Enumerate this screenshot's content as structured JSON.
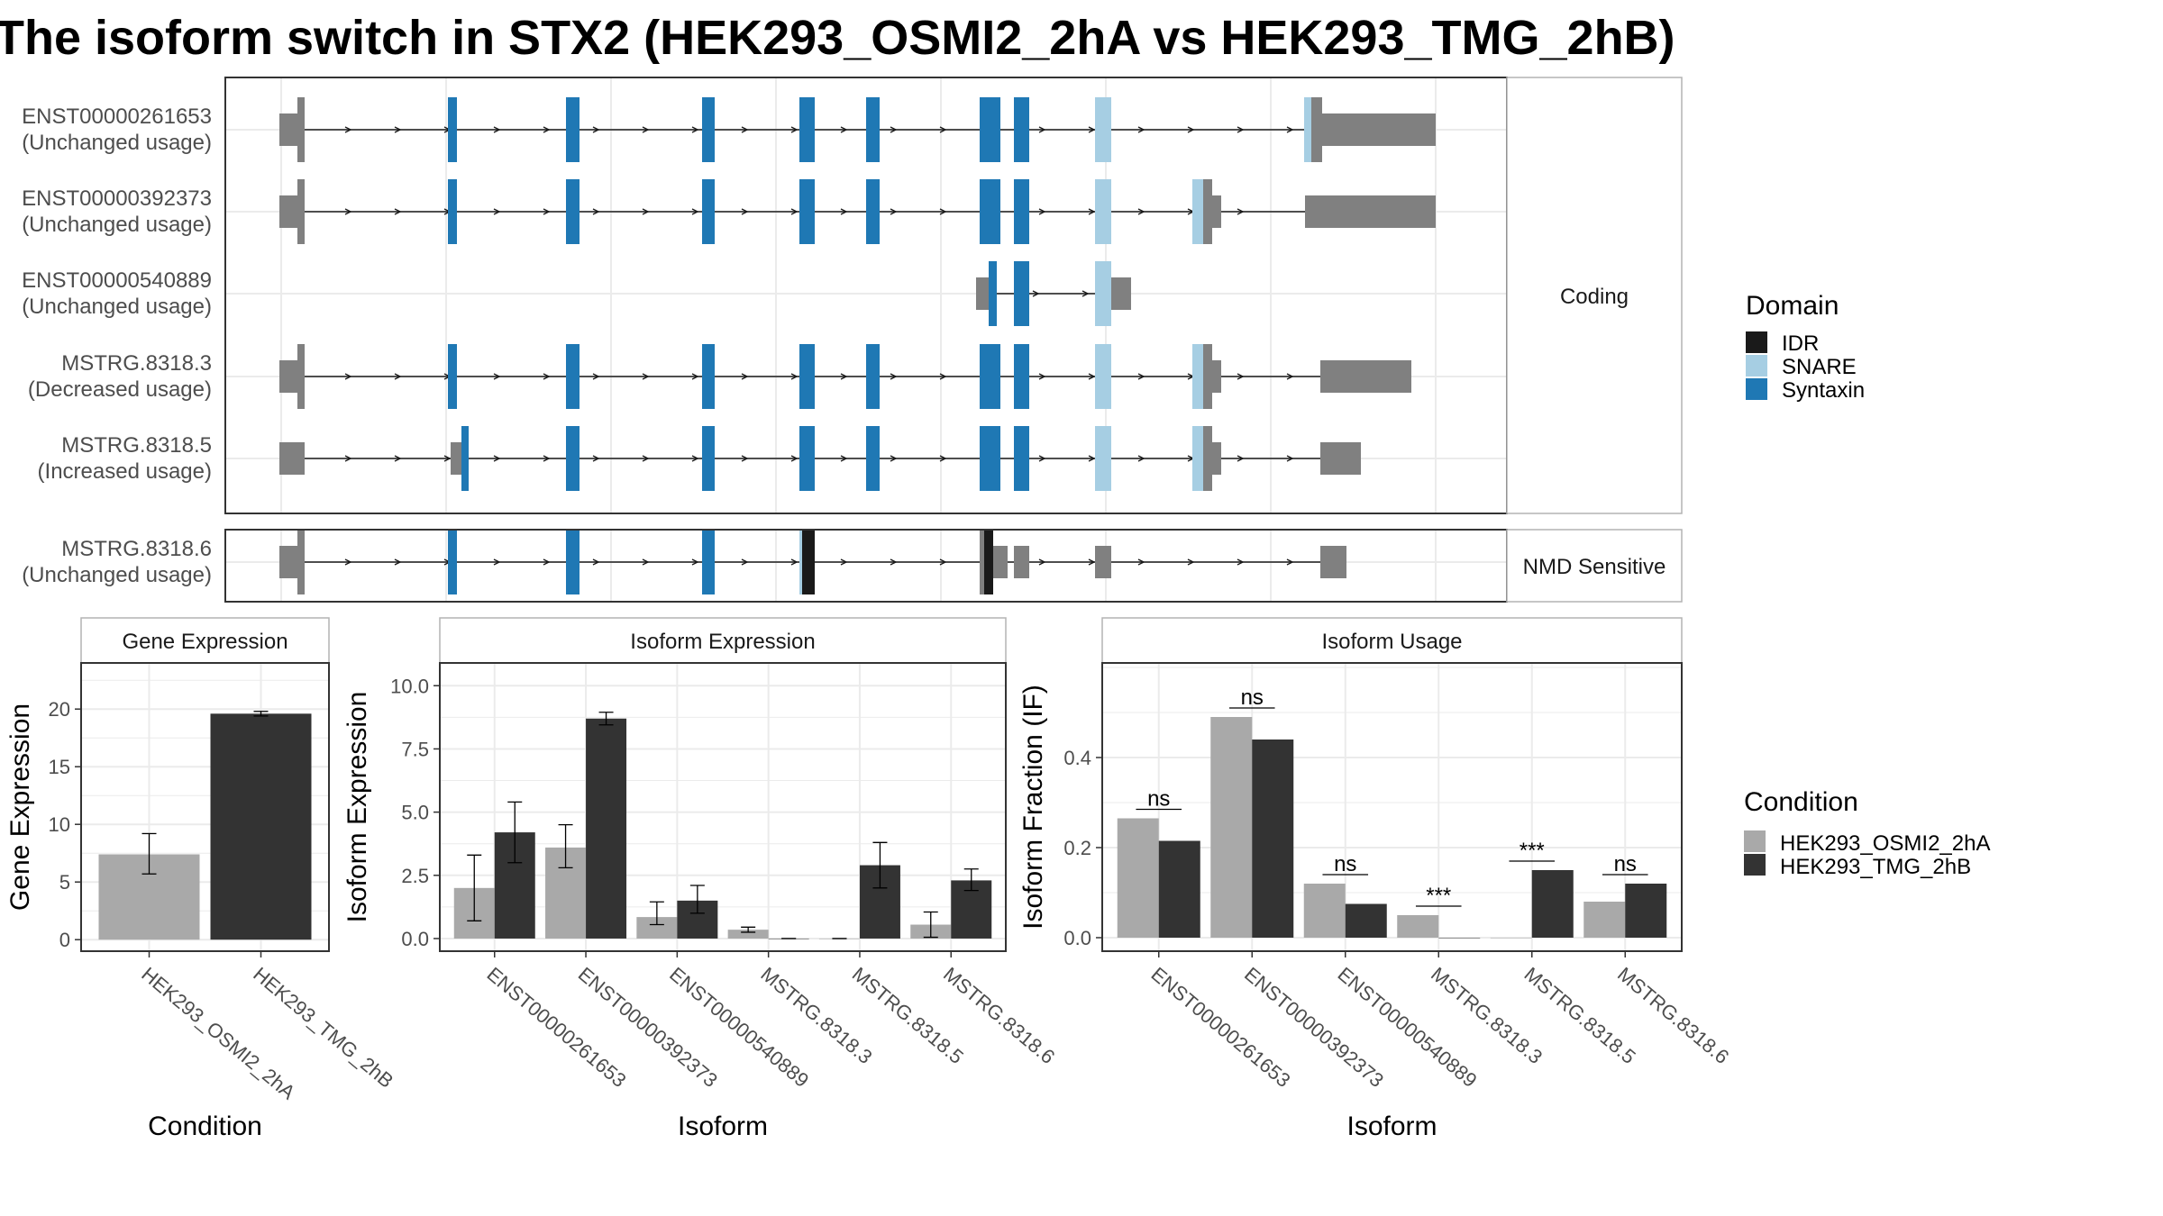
{
  "title": "The isoform switch in STX2 (HEK293_OSMI2_2hA vs HEK293_TMG_2hB)",
  "colors": {
    "utr": "#808080",
    "IDR": "#1a1a1a",
    "SNARE": "#a6cee3",
    "Syntaxin": "#1f78b4",
    "cond1": "#a9a9a9",
    "cond2": "#333333",
    "grid": "#ebebeb",
    "panel_border": "#333333"
  },
  "structure": {
    "facets": [
      {
        "label": "Coding",
        "transcripts": [
          {
            "id": "ENST00000261653",
            "usage": "(Unchanged usage)"
          },
          {
            "id": "ENST00000392373",
            "usage": "(Unchanged usage)"
          },
          {
            "id": "ENST00000540889",
            "usage": "(Unchanged usage)"
          },
          {
            "id": "MSTRG.8318.3",
            "usage": "(Decreased usage)"
          },
          {
            "id": "MSTRG.8318.5",
            "usage": "(Increased usage)"
          }
        ]
      },
      {
        "label": "NMD Sensitive",
        "transcripts": [
          {
            "id": "MSTRG.8318.6",
            "usage": "(Unchanged usage)"
          }
        ]
      }
    ]
  },
  "legend_domain": {
    "title": "Domain",
    "items": [
      {
        "label": "IDR",
        "color": "#1a1a1a"
      },
      {
        "label": "SNARE",
        "color": "#a6cee3"
      },
      {
        "label": "Syntaxin",
        "color": "#1f78b4"
      }
    ]
  },
  "legend_condition": {
    "title": "Condition",
    "items": [
      {
        "label": "HEK293_OSMI2_2hA",
        "color": "#a9a9a9"
      },
      {
        "label": "HEK293_TMG_2hB",
        "color": "#333333"
      }
    ]
  },
  "chart_data": [
    {
      "type": "bar",
      "title": "Gene Expression",
      "xlabel": "Condition",
      "ylabel": "Gene Expression",
      "categories": [
        "HEK293_OSMI2_2hA",
        "HEK293_TMG_2hB"
      ],
      "values": [
        7.4,
        19.6
      ],
      "errors": [
        [
          5.7,
          9.2
        ],
        [
          19.4,
          19.8
        ]
      ],
      "ylim": [
        -1,
        24
      ],
      "yticks": [
        0,
        5,
        10,
        15,
        20
      ],
      "ytick_labels": [
        "0",
        "5",
        "10",
        "15",
        "20"
      ],
      "grid": true
    },
    {
      "type": "bar",
      "title": "Isoform Expression",
      "xlabel": "Isoform",
      "ylabel": "Isoform Expression",
      "categories": [
        "ENST00000261653",
        "ENST00000392373",
        "ENST00000540889",
        "MSTRG.8318.3",
        "MSTRG.8318.5",
        "MSTRG.8318.6"
      ],
      "series": [
        {
          "name": "HEK293_OSMI2_2hA",
          "values": [
            2.0,
            3.6,
            0.85,
            0.35,
            0.0,
            0.55
          ],
          "errors": [
            [
              0.7,
              3.3
            ],
            [
              2.8,
              4.5
            ],
            [
              0.55,
              1.45
            ],
            [
              0.25,
              0.45
            ],
            [
              0.0,
              0.0
            ],
            [
              0.05,
              1.05
            ]
          ]
        },
        {
          "name": "HEK293_TMG_2hB",
          "values": [
            4.2,
            8.7,
            1.5,
            0.0,
            2.9,
            2.3
          ],
          "errors": [
            [
              3.0,
              5.4
            ],
            [
              8.45,
              8.95
            ],
            [
              1.0,
              2.1
            ],
            [
              0.0,
              0.0
            ],
            [
              2.0,
              3.8
            ],
            [
              1.9,
              2.75
            ]
          ]
        }
      ],
      "ylim": [
        -0.5,
        10.9
      ],
      "yticks": [
        0,
        2.5,
        5,
        7.5,
        10
      ],
      "ytick_labels": [
        "0.0",
        "2.5",
        "5.0",
        "7.5",
        "10.0"
      ],
      "grid": true
    },
    {
      "type": "bar",
      "title": "Isoform Usage",
      "xlabel": "Isoform",
      "ylabel": "Isoform Fraction (IF)",
      "categories": [
        "ENST00000261653",
        "ENST00000392373",
        "ENST00000540889",
        "MSTRG.8318.3",
        "MSTRG.8318.5",
        "MSTRG.8318.6"
      ],
      "series": [
        {
          "name": "HEK293_OSMI2_2hA",
          "values": [
            0.265,
            0.49,
            0.12,
            0.05,
            0.0,
            0.08
          ]
        },
        {
          "name": "HEK293_TMG_2hB",
          "values": [
            0.215,
            0.44,
            0.075,
            0.0,
            0.15,
            0.12
          ]
        }
      ],
      "annotations": [
        "ns",
        "ns",
        "ns",
        "***",
        "***",
        "ns"
      ],
      "ylim": [
        -0.03,
        0.61
      ],
      "yticks": [
        0,
        0.2,
        0.4
      ],
      "ytick_labels": [
        "0.0",
        "0.2",
        "0.4"
      ],
      "grid": true
    }
  ]
}
